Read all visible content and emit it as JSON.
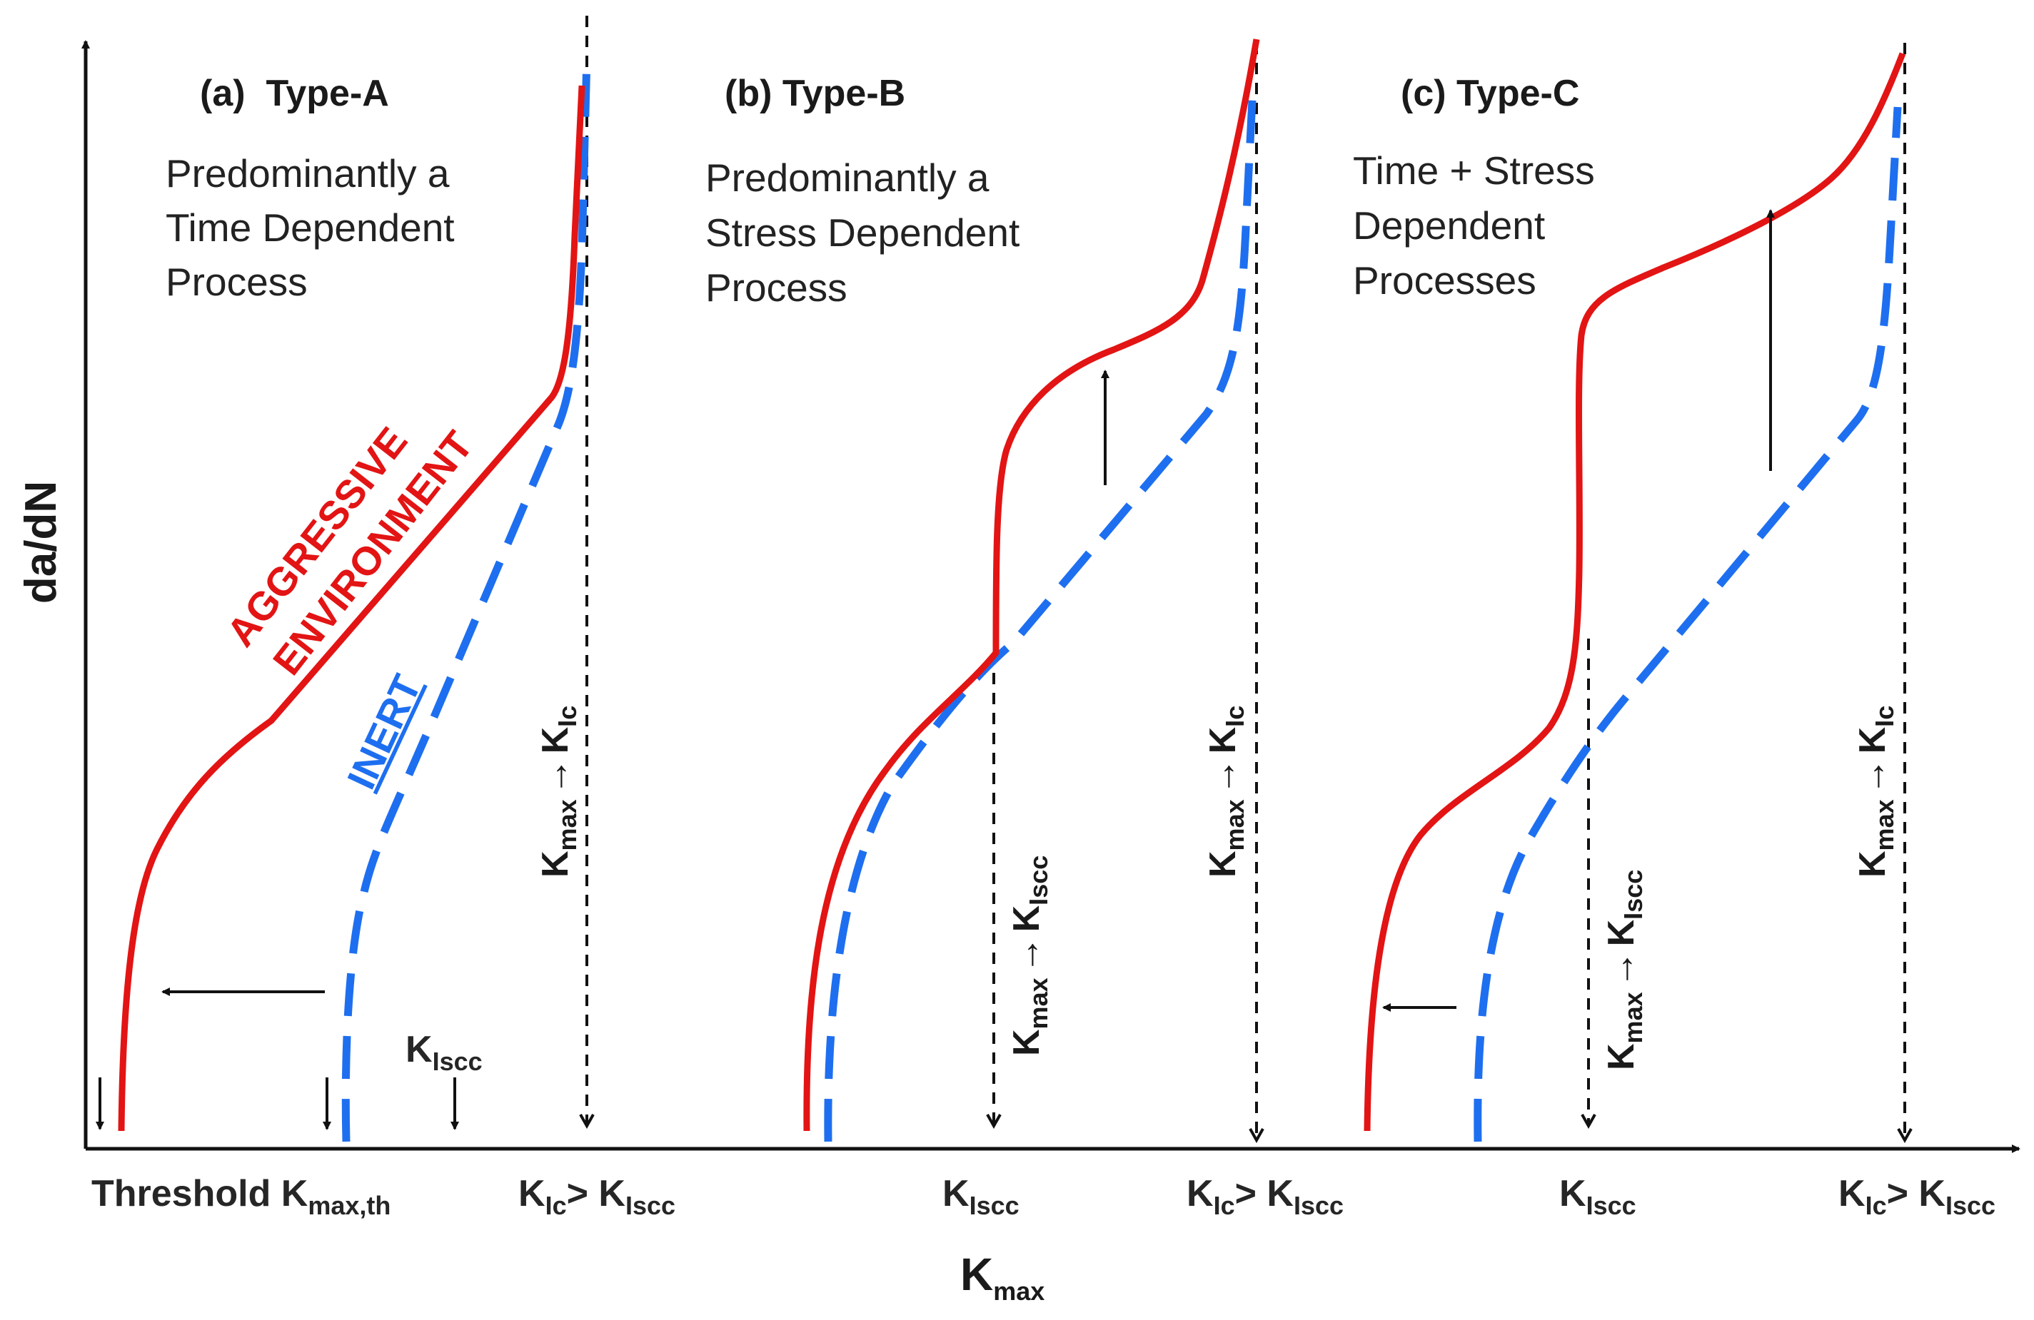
{
  "axes": {
    "y_label": "da/dN",
    "x_label": "K",
    "x_label_sub": "max"
  },
  "colors": {
    "aggressive": "#e31414",
    "inert": "#1e6ff0",
    "axis": "#111111"
  },
  "panels": {
    "a": {
      "title": "(a)  Type-A",
      "desc": [
        "Predominantly a",
        "Time Dependent",
        "Process"
      ],
      "curve_label_aggressive": [
        "AGGRESSIVE",
        "ENVIRONMENT"
      ],
      "curve_label_inert": "INERT",
      "vertical_label": {
        "k": "K",
        "max": "max",
        "arrow": "→",
        "k2": "K",
        "k2_sub": "Ic"
      },
      "kiscc_marker": {
        "k": "K",
        "sub": "Iscc"
      }
    },
    "b": {
      "title": "(b) Type-B",
      "desc": [
        "Predominantly a",
        "Stress Dependent",
        "Process"
      ],
      "vertical_label_1": {
        "k": "K",
        "max": "max",
        "arrow": "→",
        "k2": "K",
        "k2_sub": "Iscc"
      },
      "vertical_label_2": {
        "k": "K",
        "max": "max",
        "arrow": "→",
        "k2": "K",
        "k2_sub": "Ic"
      }
    },
    "c": {
      "title": "(c) Type-C",
      "desc": [
        "Time + Stress",
        "Dependent",
        "Processes"
      ],
      "vertical_label_1": {
        "k": "K",
        "max": "max",
        "arrow": "→",
        "k2": "K",
        "k2_sub": "Iscc"
      },
      "vertical_label_2": {
        "k": "K",
        "max": "max",
        "arrow": "→",
        "k2": "K",
        "k2_sub": "Ic"
      }
    }
  },
  "x_ticks": {
    "threshold": {
      "text": "Threshold K",
      "sub": "max,th"
    },
    "a_kic": {
      "k": "K",
      "sub": "Ic",
      "gt": "> K",
      "sub2": "Iscc"
    },
    "b_kiscc": {
      "k": "K",
      "sub": "Iscc"
    },
    "b_kic": {
      "k": "K",
      "sub": "Ic",
      "gt": "> K",
      "sub2": "Iscc"
    },
    "c_kiscc": {
      "k": "K",
      "sub": "Iscc"
    },
    "c_kic": {
      "k": "K",
      "sub": "Ic",
      "gt": "> K",
      "sub2": "Iscc"
    }
  }
}
